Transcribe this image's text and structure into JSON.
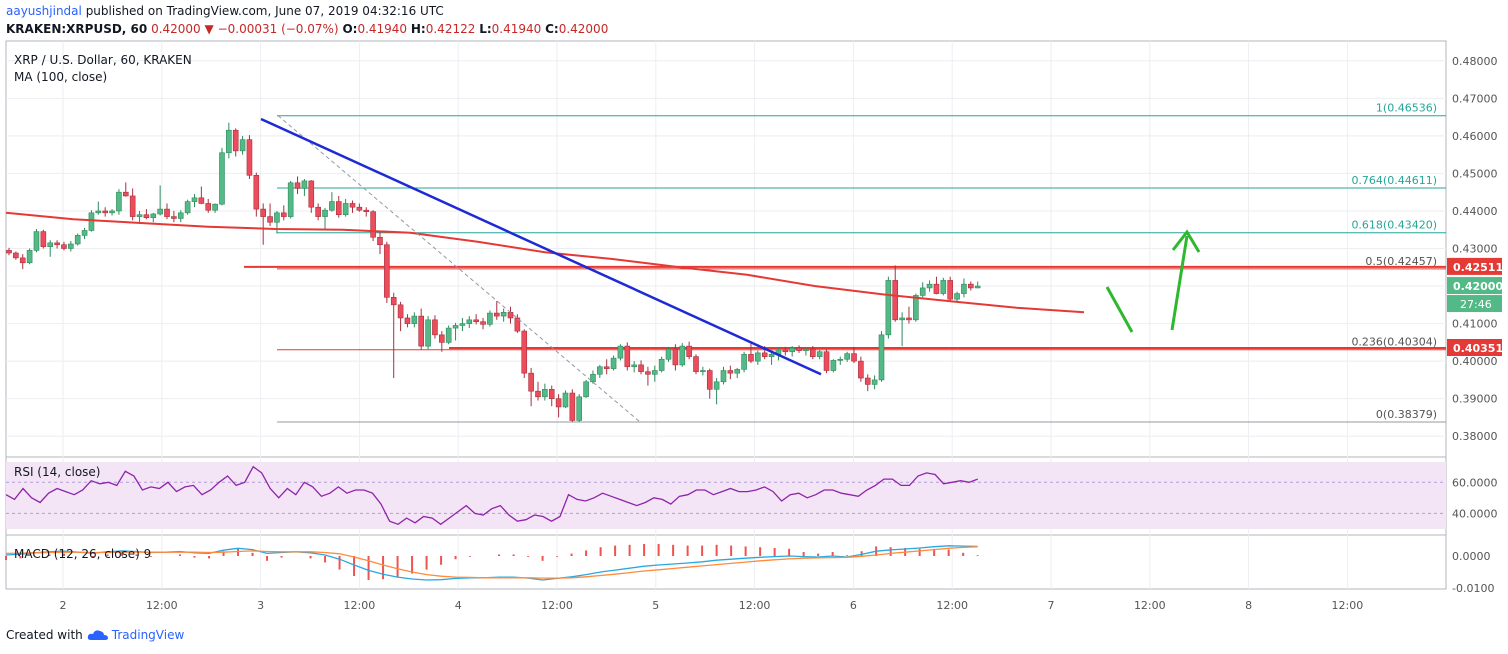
{
  "header": {
    "author": "aayushjindal",
    "published": "published on TradingView.com, June 07, 2019 04:32:16 UTC",
    "symbol": "KRAKEN:XRPUSD, 60",
    "last": "0.42000",
    "change_arrow": "▼",
    "change": "−0.00031 (−0.07%)",
    "ohlc_o_label": "O:",
    "ohlc_o": "0.41940",
    "ohlc_h_label": "H:",
    "ohlc_h": "0.42122",
    "ohlc_l_label": "L:",
    "ohlc_l": "0.41940",
    "ohlc_c_label": "C:",
    "ohlc_c": "0.42000"
  },
  "legend": {
    "title": "XRP / U.S. Dollar, 60, KRAKEN",
    "ma": "MA (100, close)",
    "rsi": "RSI (14, close)",
    "macd": "MACD (12, 26, close) 9"
  },
  "footer": {
    "created_with": "Created with",
    "brand": "TradingView"
  },
  "colors": {
    "up": "#53b987",
    "down": "#eb4d5c",
    "ma": "#e53935",
    "trendline": "#1e2ad4",
    "fib": "#26a69a",
    "arrow": "#2eb82e",
    "rsi": "#8e24aa",
    "macd": "#29a8e0",
    "signal": "#ff8a3d"
  },
  "chart_data": {
    "type": "candlestick",
    "price_axis": {
      "min": 0.375,
      "max": 0.485,
      "ticks": [
        "0.48000",
        "0.47000",
        "0.46000",
        "0.45000",
        "0.44000",
        "0.43000",
        "0.42000",
        "0.41000",
        "0.40000",
        "0.39000",
        "0.38000"
      ]
    },
    "time_axis": {
      "ticks": [
        "2",
        "12:00",
        "3",
        "12:00",
        "4",
        "12:00",
        "5",
        "12:00",
        "6",
        "12:00",
        "7",
        "12:00",
        "8",
        "12:00"
      ]
    },
    "candles": [
      [
        0.4295,
        0.4302,
        0.4282,
        0.4288
      ],
      [
        0.4288,
        0.4292,
        0.427,
        0.4275
      ],
      [
        0.4275,
        0.4285,
        0.4245,
        0.4262
      ],
      [
        0.4262,
        0.43,
        0.4258,
        0.4295
      ],
      [
        0.4295,
        0.4352,
        0.429,
        0.4345
      ],
      [
        0.4345,
        0.435,
        0.43,
        0.4305
      ],
      [
        0.4305,
        0.4322,
        0.4278,
        0.4315
      ],
      [
        0.4315,
        0.4322,
        0.43,
        0.431
      ],
      [
        0.431,
        0.4318,
        0.4295,
        0.43
      ],
      [
        0.43,
        0.432,
        0.4292,
        0.4312
      ],
      [
        0.4312,
        0.434,
        0.4308,
        0.4335
      ],
      [
        0.4335,
        0.4355,
        0.4325,
        0.4348
      ],
      [
        0.4348,
        0.4402,
        0.4345,
        0.4395
      ],
      [
        0.4395,
        0.4425,
        0.439,
        0.44
      ],
      [
        0.44,
        0.441,
        0.4385,
        0.4395
      ],
      [
        0.4395,
        0.4405,
        0.4388,
        0.44
      ],
      [
        0.44,
        0.4458,
        0.439,
        0.445
      ],
      [
        0.445,
        0.4476,
        0.4438,
        0.444
      ],
      [
        0.444,
        0.446,
        0.4375,
        0.4385
      ],
      [
        0.4385,
        0.44,
        0.437,
        0.439
      ],
      [
        0.439,
        0.4405,
        0.4378,
        0.4382
      ],
      [
        0.4382,
        0.4395,
        0.437,
        0.4392
      ],
      [
        0.4392,
        0.4468,
        0.4388,
        0.4405
      ],
      [
        0.4405,
        0.442,
        0.4378,
        0.4385
      ],
      [
        0.4385,
        0.44,
        0.437,
        0.438
      ],
      [
        0.438,
        0.4402,
        0.437,
        0.4395
      ],
      [
        0.4395,
        0.443,
        0.439,
        0.4425
      ],
      [
        0.4425,
        0.4445,
        0.441,
        0.4435
      ],
      [
        0.4435,
        0.4465,
        0.4418,
        0.442
      ],
      [
        0.442,
        0.4432,
        0.4395,
        0.4402
      ],
      [
        0.4402,
        0.442,
        0.4395,
        0.4418
      ],
      [
        0.4418,
        0.4568,
        0.4415,
        0.4555
      ],
      [
        0.4555,
        0.4635,
        0.454,
        0.4615
      ],
      [
        0.4615,
        0.462,
        0.4545,
        0.456
      ],
      [
        0.456,
        0.46,
        0.455,
        0.459
      ],
      [
        0.459,
        0.4602,
        0.4485,
        0.4495
      ],
      [
        0.4495,
        0.4502,
        0.4385,
        0.4405
      ],
      [
        0.4405,
        0.442,
        0.431,
        0.4385
      ],
      [
        0.4385,
        0.442,
        0.436,
        0.437
      ],
      [
        0.437,
        0.44,
        0.434,
        0.4395
      ],
      [
        0.4395,
        0.4415,
        0.4375,
        0.4385
      ],
      [
        0.4385,
        0.448,
        0.438,
        0.4475
      ],
      [
        0.4475,
        0.4492,
        0.4445,
        0.446
      ],
      [
        0.446,
        0.4485,
        0.444,
        0.448
      ],
      [
        0.448,
        0.4482,
        0.4395,
        0.441
      ],
      [
        0.441,
        0.442,
        0.4375,
        0.4385
      ],
      [
        0.4385,
        0.4408,
        0.435,
        0.4402
      ],
      [
        0.4402,
        0.445,
        0.4398,
        0.4425
      ],
      [
        0.4425,
        0.444,
        0.4382,
        0.439
      ],
      [
        0.439,
        0.4432,
        0.4385,
        0.442
      ],
      [
        0.442,
        0.4428,
        0.4395,
        0.441
      ],
      [
        0.441,
        0.442,
        0.4398,
        0.4402
      ],
      [
        0.4402,
        0.441,
        0.4385,
        0.4398
      ],
      [
        0.4398,
        0.4402,
        0.432,
        0.433
      ],
      [
        0.433,
        0.4345,
        0.4285,
        0.431
      ],
      [
        0.431,
        0.4318,
        0.4155,
        0.417
      ],
      [
        0.417,
        0.4182,
        0.3955,
        0.415
      ],
      [
        0.415,
        0.4158,
        0.408,
        0.4115
      ],
      [
        0.4115,
        0.4125,
        0.409,
        0.41
      ],
      [
        0.41,
        0.413,
        0.409,
        0.412
      ],
      [
        0.412,
        0.414,
        0.403,
        0.404
      ],
      [
        0.404,
        0.412,
        0.4032,
        0.411
      ],
      [
        0.411,
        0.4122,
        0.406,
        0.407
      ],
      [
        0.407,
        0.408,
        0.4025,
        0.405
      ],
      [
        0.405,
        0.4095,
        0.4045,
        0.4088
      ],
      [
        0.4088,
        0.4102,
        0.4055,
        0.4095
      ],
      [
        0.4095,
        0.4115,
        0.408,
        0.41
      ],
      [
        0.41,
        0.412,
        0.4088,
        0.411
      ],
      [
        0.411,
        0.4125,
        0.4098,
        0.4105
      ],
      [
        0.4105,
        0.4115,
        0.4085,
        0.4098
      ],
      [
        0.4098,
        0.4135,
        0.4092,
        0.4128
      ],
      [
        0.4128,
        0.416,
        0.411,
        0.412
      ],
      [
        0.412,
        0.414,
        0.4105,
        0.413
      ],
      [
        0.413,
        0.4145,
        0.41,
        0.4115
      ],
      [
        0.4115,
        0.4125,
        0.4075,
        0.408
      ],
      [
        0.408,
        0.4085,
        0.3955,
        0.3968
      ],
      [
        0.3968,
        0.3982,
        0.388,
        0.392
      ],
      [
        0.392,
        0.3945,
        0.3895,
        0.3905
      ],
      [
        0.3905,
        0.394,
        0.3895,
        0.3925
      ],
      [
        0.3925,
        0.3935,
        0.388,
        0.39
      ],
      [
        0.39,
        0.3912,
        0.385,
        0.3878
      ],
      [
        0.3878,
        0.3922,
        0.3875,
        0.3915
      ],
      [
        0.3915,
        0.3925,
        0.3838,
        0.3842
      ],
      [
        0.3842,
        0.3912,
        0.3838,
        0.3905
      ],
      [
        0.3905,
        0.395,
        0.3902,
        0.3945
      ],
      [
        0.3945,
        0.3975,
        0.394,
        0.3965
      ],
      [
        0.3965,
        0.399,
        0.3955,
        0.3985
      ],
      [
        0.3985,
        0.4005,
        0.3965,
        0.398
      ],
      [
        0.398,
        0.4015,
        0.3975,
        0.4008
      ],
      [
        0.4008,
        0.4045,
        0.4002,
        0.404
      ],
      [
        0.404,
        0.405,
        0.3975,
        0.3985
      ],
      [
        0.3985,
        0.4,
        0.397,
        0.399
      ],
      [
        0.399,
        0.4002,
        0.3965,
        0.3972
      ],
      [
        0.3972,
        0.3985,
        0.3935,
        0.3965
      ],
      [
        0.3965,
        0.3988,
        0.3945,
        0.3975
      ],
      [
        0.3975,
        0.4012,
        0.397,
        0.4005
      ],
      [
        0.4005,
        0.4038,
        0.3998,
        0.4032
      ],
      [
        0.4032,
        0.4045,
        0.3975,
        0.399
      ],
      [
        0.399,
        0.4048,
        0.3985,
        0.404
      ],
      [
        0.404,
        0.4052,
        0.4005,
        0.4012
      ],
      [
        0.4012,
        0.4018,
        0.3965,
        0.3972
      ],
      [
        0.3972,
        0.3985,
        0.3962,
        0.3975
      ],
      [
        0.3975,
        0.398,
        0.39,
        0.3925
      ],
      [
        0.3925,
        0.3955,
        0.3885,
        0.3945
      ],
      [
        0.3945,
        0.3985,
        0.3938,
        0.3975
      ],
      [
        0.3975,
        0.3988,
        0.3952,
        0.3968
      ],
      [
        0.3968,
        0.3982,
        0.3955,
        0.3978
      ],
      [
        0.3978,
        0.4025,
        0.397,
        0.4018
      ],
      [
        0.4018,
        0.4052,
        0.3995,
        0.4
      ],
      [
        0.4,
        0.4028,
        0.399,
        0.4022
      ],
      [
        0.4022,
        0.404,
        0.4005,
        0.4012
      ],
      [
        0.4012,
        0.4022,
        0.399,
        0.4018
      ],
      [
        0.4018,
        0.4035,
        0.4002,
        0.403
      ],
      [
        0.403,
        0.4038,
        0.4015,
        0.4025
      ],
      [
        0.4025,
        0.404,
        0.4012,
        0.4035
      ],
      [
        0.4035,
        0.4042,
        0.4022,
        0.4028
      ],
      [
        0.4028,
        0.4035,
        0.4015,
        0.4032
      ],
      [
        0.4032,
        0.404,
        0.4005,
        0.4012
      ],
      [
        0.4012,
        0.403,
        0.4005,
        0.4025
      ],
      [
        0.4025,
        0.4032,
        0.3968,
        0.3975
      ],
      [
        0.3975,
        0.4005,
        0.397,
        0.4002
      ],
      [
        0.4002,
        0.4012,
        0.399,
        0.4005
      ],
      [
        0.4005,
        0.4025,
        0.3998,
        0.402
      ],
      [
        0.402,
        0.4038,
        0.3995,
        0.4
      ],
      [
        0.4,
        0.4012,
        0.3945,
        0.3955
      ],
      [
        0.3955,
        0.3965,
        0.392,
        0.3938
      ],
      [
        0.3938,
        0.3962,
        0.3925,
        0.395
      ],
      [
        0.395,
        0.408,
        0.3945,
        0.407
      ],
      [
        0.407,
        0.4225,
        0.406,
        0.4215
      ],
      [
        0.4215,
        0.4255,
        0.4105,
        0.411
      ],
      [
        0.411,
        0.413,
        0.404,
        0.4115
      ],
      [
        0.4115,
        0.4145,
        0.41,
        0.411
      ],
      [
        0.411,
        0.418,
        0.4105,
        0.4175
      ],
      [
        0.4175,
        0.421,
        0.417,
        0.4195
      ],
      [
        0.4195,
        0.4215,
        0.4185,
        0.4205
      ],
      [
        0.4205,
        0.4225,
        0.4178,
        0.418
      ],
      [
        0.418,
        0.4222,
        0.4175,
        0.4215
      ],
      [
        0.4215,
        0.4225,
        0.416,
        0.4165
      ],
      [
        0.4165,
        0.4185,
        0.416,
        0.418
      ],
      [
        0.418,
        0.422,
        0.417,
        0.4205
      ],
      [
        0.4205,
        0.4212,
        0.4188,
        0.4195
      ],
      [
        0.4195,
        0.4212,
        0.4194,
        0.42
      ]
    ],
    "moving_average": [
      0.4395,
      0.4378,
      0.4368,
      0.4358,
      0.4352,
      0.435,
      0.4342,
      0.4318,
      0.429,
      0.4272,
      0.425,
      0.423,
      0.42,
      0.4178,
      0.416,
      0.4142,
      0.413
    ],
    "trendline": {
      "from": [
        0,
        0.4645
      ],
      "to": [
        1,
        0.3965
      ]
    },
    "fib_guide": {
      "from": [
        0,
        0.4654
      ],
      "to": [
        1,
        0.3838
      ]
    },
    "fibonacci": [
      {
        "ratio": "1",
        "price": "0.46536",
        "label": "1(0.46536)"
      },
      {
        "ratio": "0.764",
        "price": "0.44611",
        "label": "0.764(0.44611)"
      },
      {
        "ratio": "0.618",
        "price": "0.43420",
        "label": "0.618(0.43420)"
      },
      {
        "ratio": "0.5",
        "price": "0.42457",
        "label": "0.5(0.42457)"
      },
      {
        "ratio": "0.236",
        "price": "0.40304",
        "label": "0.236(0.40304)"
      },
      {
        "ratio": "0",
        "price": "0.38379",
        "label": "0(0.38379)"
      }
    ],
    "horizontal_levels": [
      {
        "price": 0.4251,
        "label": "0.42511"
      },
      {
        "price": 0.4035,
        "label": "0.40351"
      }
    ],
    "last_price_label": "0.42000",
    "countdown_label": "27:46",
    "rsi": {
      "ticks": [
        "60.0000",
        "40.0000"
      ],
      "values": [
        52,
        49,
        56,
        50,
        47,
        53,
        56,
        54,
        52,
        55,
        61,
        59,
        60,
        58,
        67,
        64,
        55,
        57,
        56,
        60,
        54,
        57,
        58,
        52,
        55,
        60,
        64,
        58,
        60,
        70,
        66,
        56,
        50,
        56,
        52,
        60,
        57,
        51,
        53,
        57,
        53,
        55,
        55,
        53,
        46,
        35,
        33,
        37,
        34,
        38,
        37,
        33,
        37,
        41,
        45,
        40,
        39,
        43,
        45,
        39,
        35,
        36,
        39,
        38,
        35,
        38,
        52,
        49,
        48,
        50,
        53,
        51,
        49,
        47,
        45,
        47,
        50,
        49,
        46,
        51,
        52,
        55,
        55,
        52,
        54,
        56,
        54,
        54,
        55,
        57,
        54,
        48,
        52,
        53,
        50,
        52,
        55,
        55,
        53,
        52,
        51,
        55,
        58,
        62,
        62,
        58,
        58,
        64,
        66,
        65,
        59,
        60,
        61,
        60,
        62
      ]
    },
    "macd": {
      "ticks": [
        "0.0000",
        "-0.0100"
      ],
      "macd_line": [
        0.0003,
        0.0006,
        0.001,
        0.0013,
        0.0015,
        0.0012,
        0.0009,
        0.0013,
        0.0016,
        0.0014,
        0.0011,
        0.0012,
        0.0014,
        0.001,
        0.0008,
        0.0018,
        0.0024,
        0.002,
        0.0008,
        0.0011,
        0.0013,
        0.001,
        0.0003,
        -0.001,
        -0.0028,
        -0.0045,
        -0.0057,
        -0.0066,
        -0.0072,
        -0.0075,
        -0.0074,
        -0.007,
        -0.0068,
        -0.0068,
        -0.0066,
        -0.0066,
        -0.0069,
        -0.0075,
        -0.007,
        -0.0065,
        -0.0058,
        -0.005,
        -0.0044,
        -0.0038,
        -0.0032,
        -0.0028,
        -0.0025,
        -0.0022,
        -0.0018,
        -0.0013,
        -0.001,
        -0.0007,
        -0.0004,
        -0.0002,
        0.0,
        -0.0002,
        -0.0003,
        0.0,
        -0.0003,
        0.0005,
        0.0015,
        0.0019,
        0.0022,
        0.0025,
        0.0029,
        0.0032,
        0.0031,
        0.003
      ],
      "signal_line": [
        0.0008,
        0.0009,
        0.001,
        0.0011,
        0.0012,
        0.0012,
        0.0011,
        0.0011,
        0.0012,
        0.0012,
        0.0012,
        0.0012,
        0.0012,
        0.0012,
        0.0011,
        0.0012,
        0.0014,
        0.0016,
        0.0014,
        0.0013,
        0.0013,
        0.0013,
        0.0011,
        0.0007,
        -0.0003,
        -0.0015,
        -0.0028,
        -0.004,
        -0.005,
        -0.0058,
        -0.0063,
        -0.0066,
        -0.0067,
        -0.0068,
        -0.0068,
        -0.0068,
        -0.0068,
        -0.0069,
        -0.0069,
        -0.0068,
        -0.0065,
        -0.0061,
        -0.0057,
        -0.0052,
        -0.0047,
        -0.0043,
        -0.0039,
        -0.0035,
        -0.0031,
        -0.0027,
        -0.0023,
        -0.0019,
        -0.0015,
        -0.0012,
        -0.0009,
        -0.0007,
        -0.0006,
        -0.0005,
        -0.0004,
        -0.0001,
        0.0003,
        0.0008,
        0.0012,
        0.0016,
        0.002,
        0.0024,
        0.0027,
        0.0029
      ]
    }
  }
}
